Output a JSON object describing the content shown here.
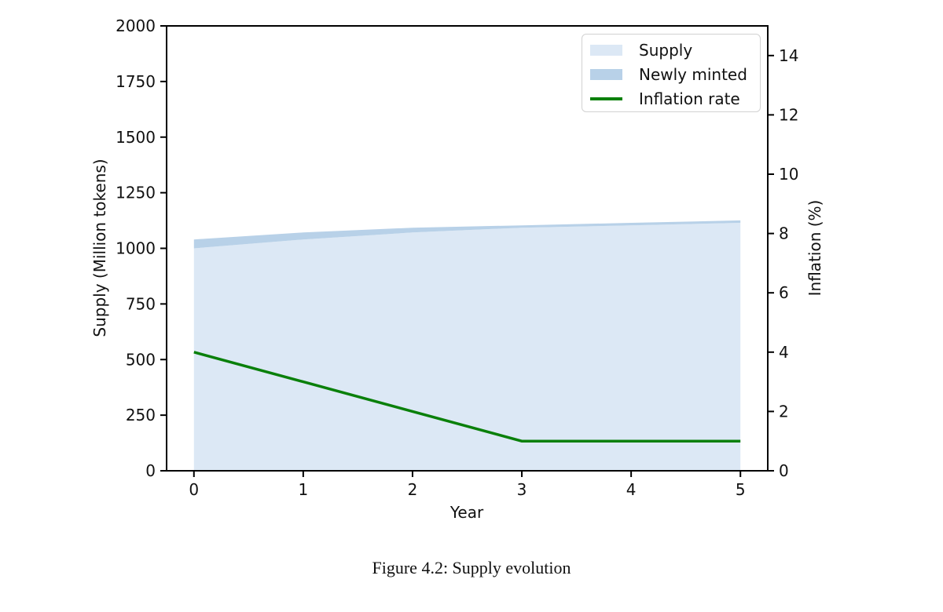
{
  "figure": {
    "caption": "Figure 4.2: Supply evolution"
  },
  "colors": {
    "supply_fill": "#dce8f5",
    "minted_fill": "#b8d1e8",
    "inflation_line": "#0a800a",
    "axis": "#000000",
    "legend_border": "#d2d2d2"
  },
  "chart_data": {
    "type": "area",
    "title": "",
    "xlabel": "Year",
    "ylabel_left": "Supply (Million tokens)",
    "ylabel_right": "Inflation (%)",
    "x": [
      0,
      1,
      2,
      3,
      4,
      5
    ],
    "xlim": [
      -0.25,
      5.25
    ],
    "ylim_left": [
      0,
      2000
    ],
    "ylim_right": [
      0,
      15
    ],
    "xticks": [
      0,
      1,
      2,
      3,
      4,
      5
    ],
    "yticks_left": [
      0,
      250,
      500,
      750,
      1000,
      1250,
      1500,
      1750,
      2000
    ],
    "yticks_right": [
      0,
      2,
      4,
      6,
      8,
      10,
      12,
      14
    ],
    "grid": false,
    "legend_position": "upper right",
    "legend": [
      {
        "label": "Supply",
        "type": "patch",
        "color": "#dce8f5"
      },
      {
        "label": "Newly minted",
        "type": "patch",
        "color": "#b8d1e8"
      },
      {
        "label": "Inflation rate",
        "type": "line",
        "color": "#0a800a"
      }
    ],
    "series": [
      {
        "name": "Supply",
        "type": "area",
        "axis": "left",
        "values": [
          1000,
          1040,
          1071.2,
          1092.6,
          1103.5,
          1114.6
        ]
      },
      {
        "name": "Newly minted",
        "type": "area-stacked-on-supply",
        "axis": "left",
        "values": [
          40,
          31.2,
          21.4,
          10.9,
          11.0,
          11.1
        ]
      },
      {
        "name": "Inflation rate",
        "type": "line",
        "axis": "right",
        "values": [
          4,
          3,
          2,
          1,
          1,
          1
        ]
      }
    ]
  }
}
